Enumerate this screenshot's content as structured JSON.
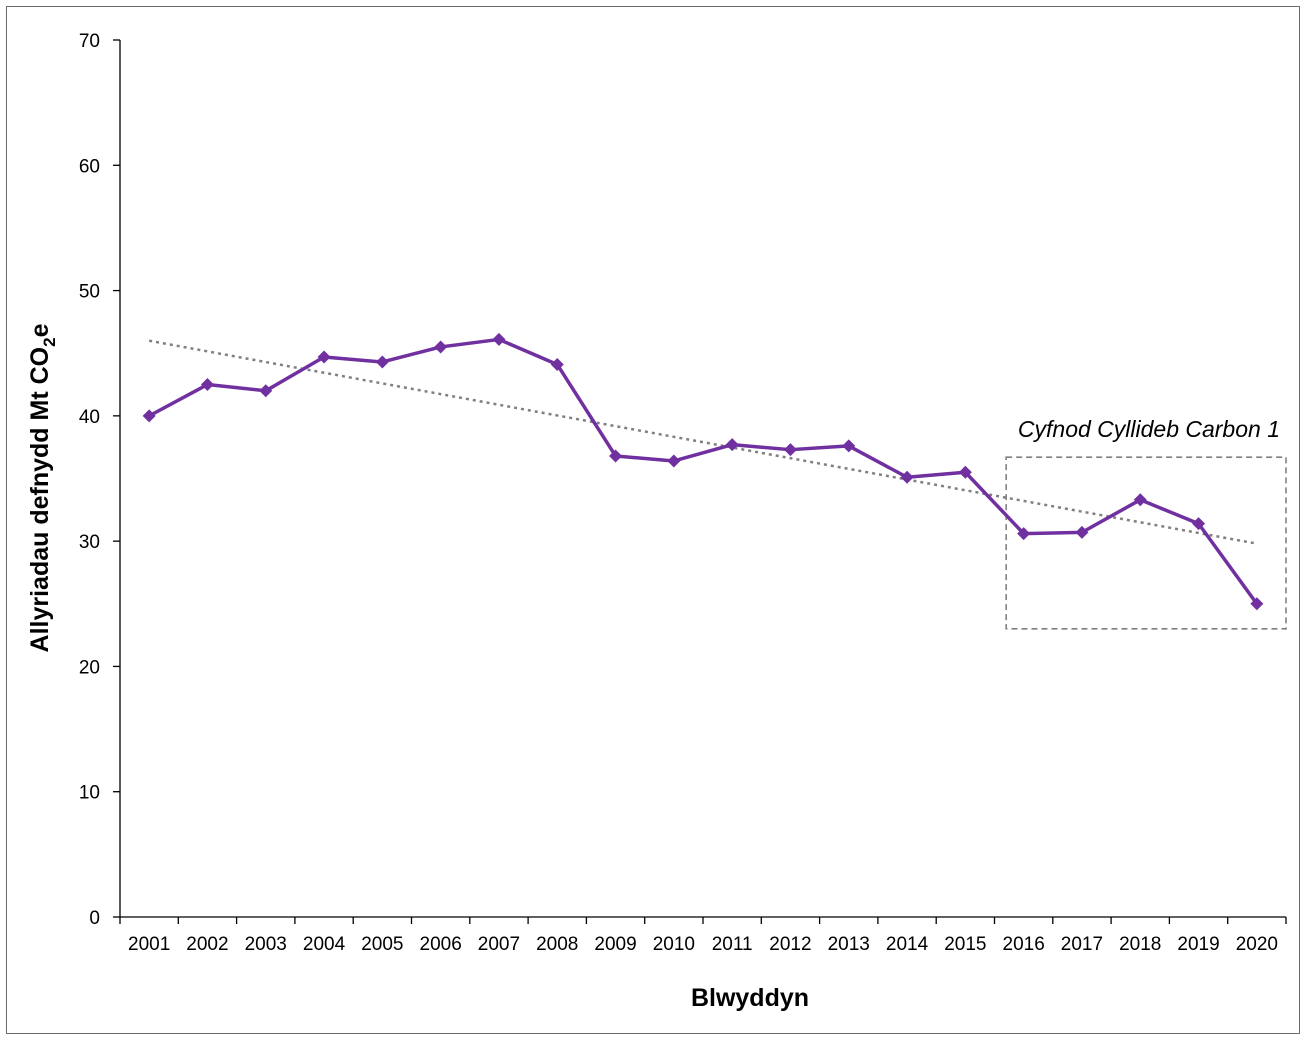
{
  "chart_data": {
    "type": "line",
    "title": "",
    "xlabel": "Blwyddyn",
    "ylabel": {
      "main": "Allyriadau defnydd Mt CO",
      "sub": "2",
      "tail": "e"
    },
    "ylim": [
      0,
      70
    ],
    "yticks": [
      "0",
      "10",
      "20",
      "30",
      "40",
      "50",
      "60",
      "70"
    ],
    "categories": [
      "2001",
      "2002",
      "2003",
      "2004",
      "2005",
      "2006",
      "2007",
      "2008",
      "2009",
      "2010",
      "2011",
      "2012",
      "2013",
      "2014",
      "2015",
      "2016",
      "2017",
      "2018",
      "2019",
      "2020"
    ],
    "series": [
      {
        "values": [
          40.0,
          42.5,
          42.0,
          44.7,
          44.3,
          45.5,
          46.1,
          44.1,
          36.8,
          36.4,
          37.7,
          37.3,
          37.6,
          35.1,
          35.5,
          30.6,
          30.7,
          33.3,
          31.4,
          25.0
        ],
        "color": "#7030a0",
        "marker": "diamond"
      }
    ],
    "trendline": {
      "style": "dotted",
      "color": "#808080",
      "start": 46.0,
      "end": 29.8
    },
    "annotation": {
      "text": "Cyfnod Cyllideb Carbon 1",
      "from_category": "2016",
      "to_category": "2020",
      "y_range": [
        23,
        36.7
      ]
    },
    "grid": false,
    "legend": "none"
  }
}
